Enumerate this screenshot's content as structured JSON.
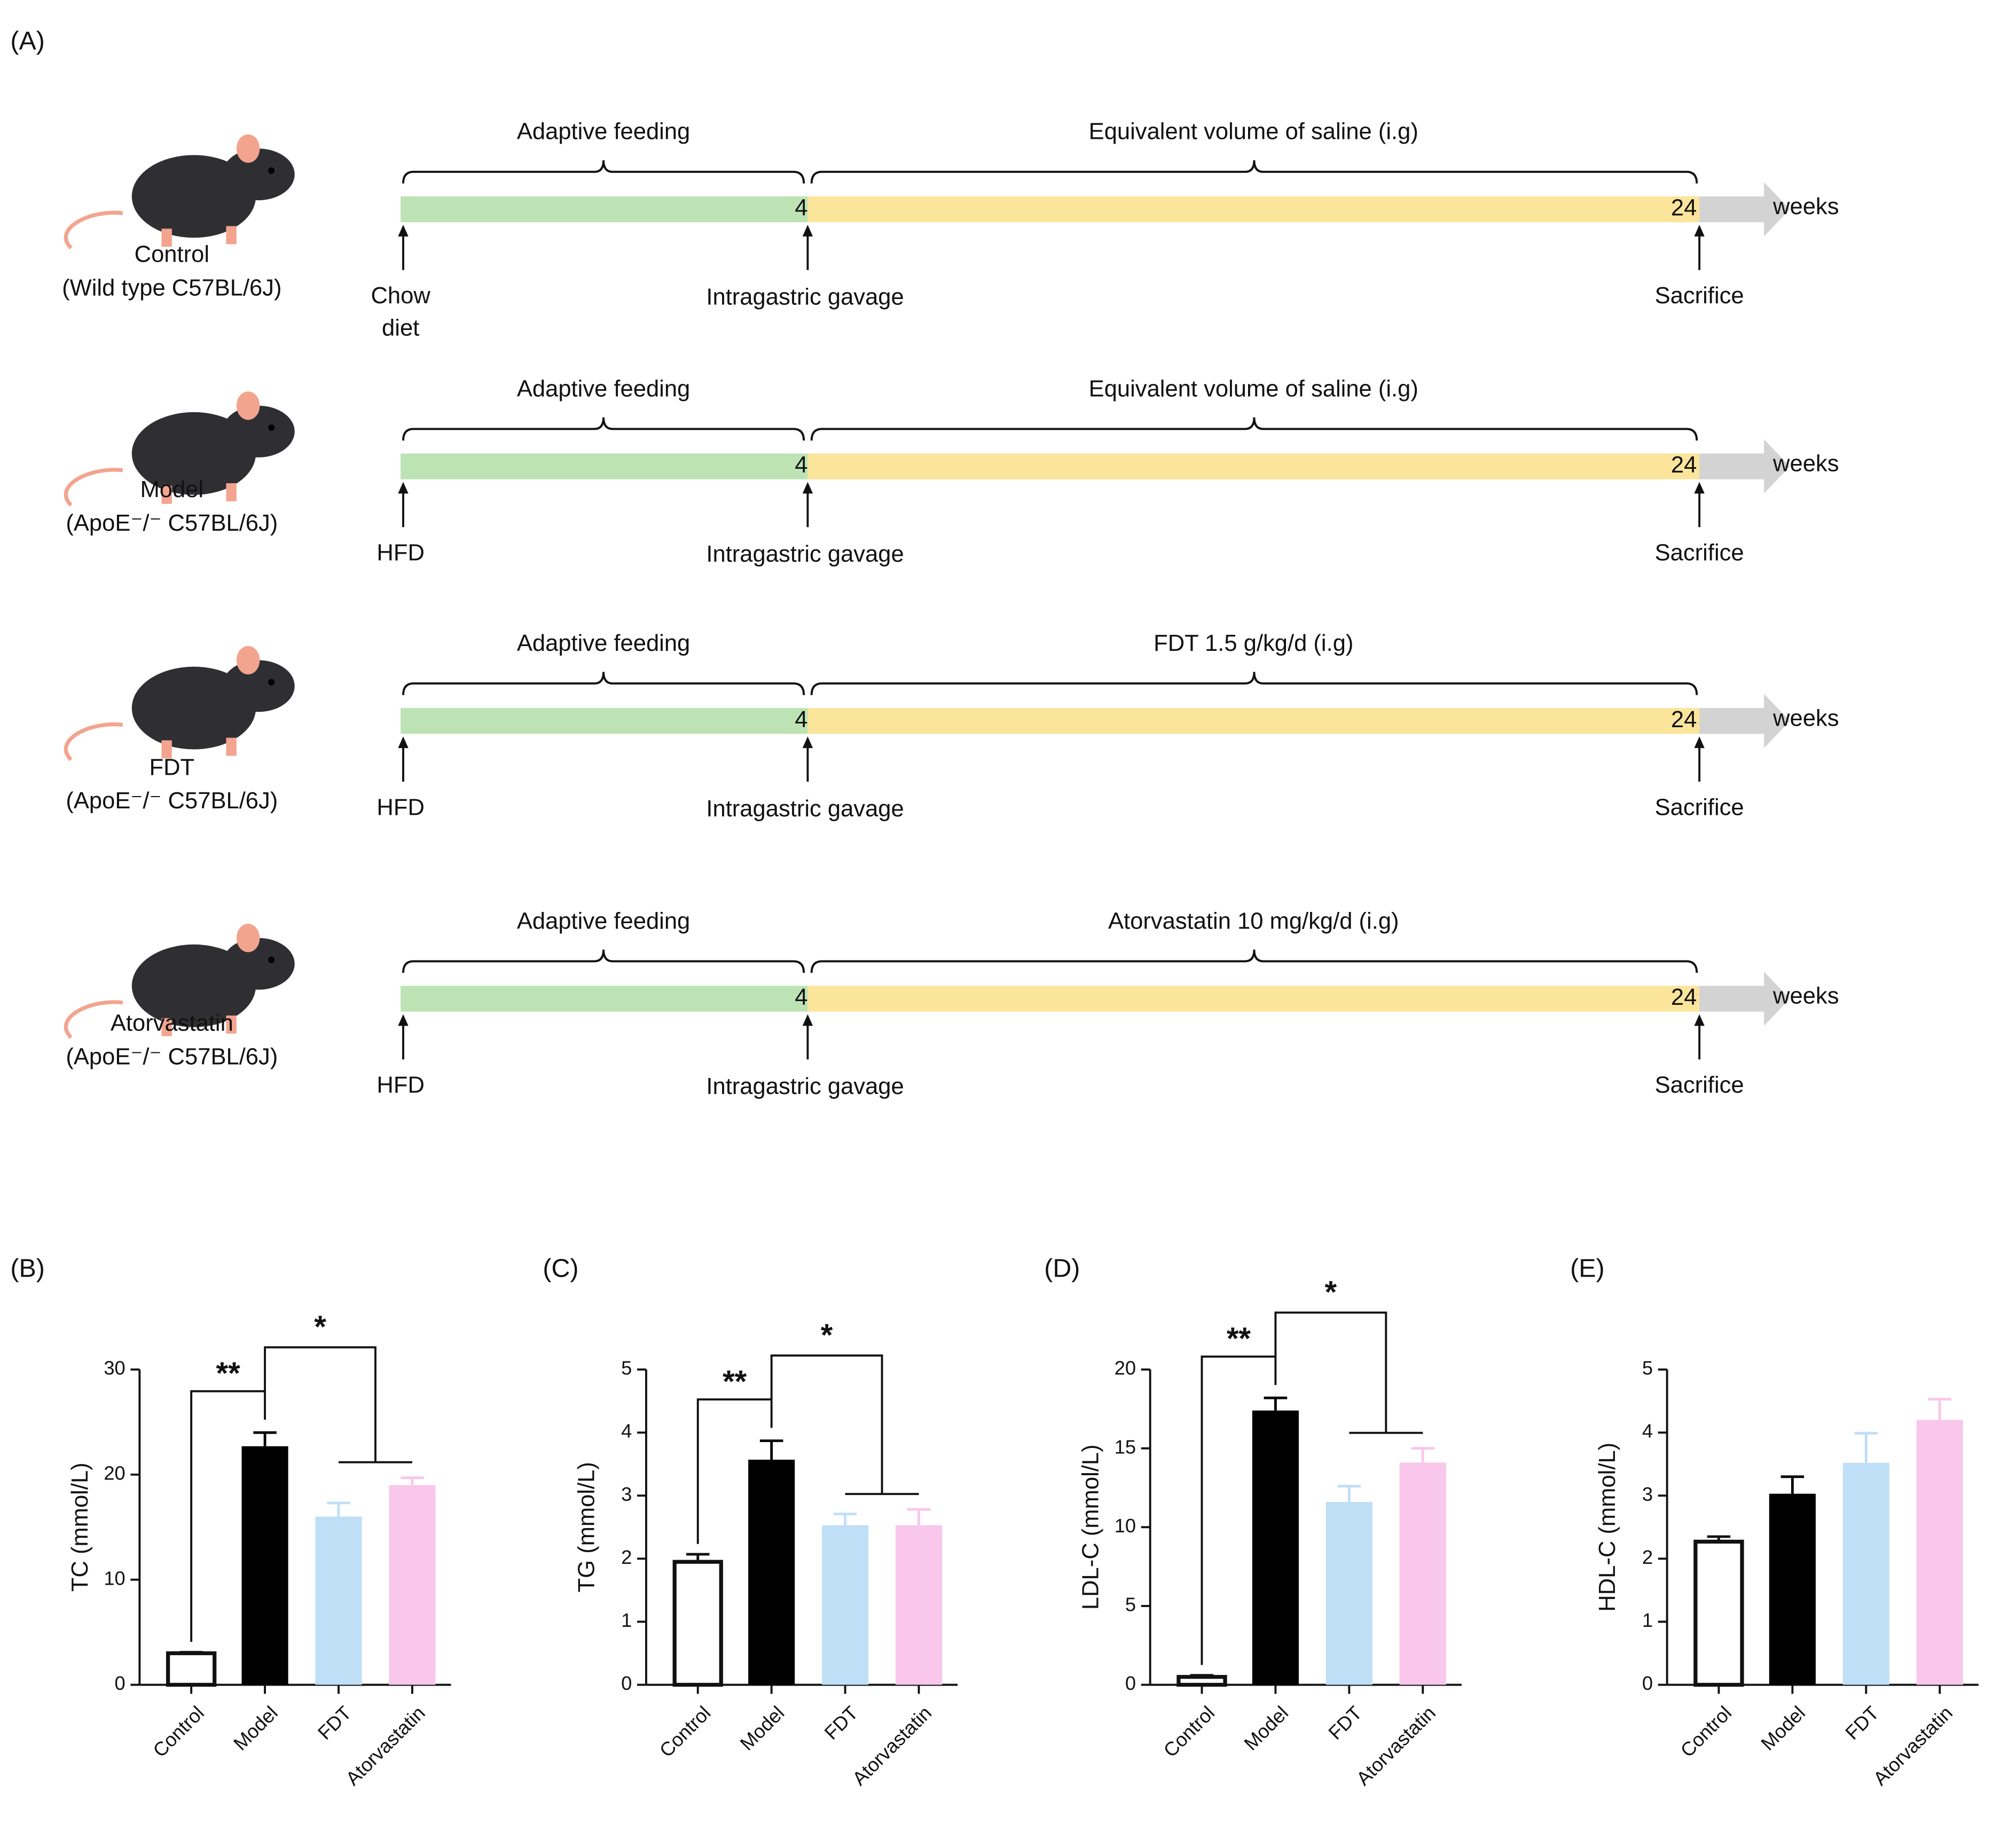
{
  "panel_a": {
    "label": "(A)",
    "unit": "weeks",
    "groups": [
      {
        "name": "Control",
        "strain": "(Wild type C57BL/6J)",
        "start_label": [
          "Chow",
          "diet"
        ],
        "phase1": "Adaptive feeding",
        "phase2": "Equivalent volume of saline (i.g)",
        "weeks": [
          4,
          24
        ],
        "mid_event": "Intragastric gavage",
        "end_event": "Sacrifice"
      },
      {
        "name": "Model",
        "strain": "(ApoE⁻/⁻ C57BL/6J)",
        "start_label": [
          "HFD"
        ],
        "phase1": "Adaptive feeding",
        "phase2": "Equivalent volume of saline (i.g)",
        "weeks": [
          4,
          24
        ],
        "mid_event": "Intragastric gavage",
        "end_event": "Sacrifice"
      },
      {
        "name": "FDT",
        "strain": "(ApoE⁻/⁻ C57BL/6J)",
        "start_label": [
          "HFD"
        ],
        "phase1": "Adaptive feeding",
        "phase2": "FDT 1.5 g/kg/d (i.g)",
        "weeks": [
          4,
          24
        ],
        "mid_event": "Intragastric gavage",
        "end_event": "Sacrifice"
      },
      {
        "name": "Atorvastatin",
        "strain": "(ApoE⁻/⁻ C57BL/6J)",
        "start_label": [
          "HFD"
        ],
        "phase1": "Adaptive feeding",
        "phase2": "Atorvastatin 10 mg/kg/d (i.g)",
        "weeks": [
          4,
          24
        ],
        "mid_event": "Intragastric gavage",
        "end_event": "Sacrifice"
      }
    ]
  },
  "chart_data": [
    {
      "type": "bar",
      "label": "(B)",
      "ylabel": "TC (mmol/L)",
      "categories": [
        "Control",
        "Model",
        "FDT",
        "Atorvastatin"
      ],
      "values": [
        3.0,
        22.7,
        16.0,
        19.0
      ],
      "errors": [
        0.1,
        1.3,
        1.3,
        0.7
      ],
      "colors": [
        "#ffffff",
        "#000000",
        "#bfdff7",
        "#f9c6ec"
      ],
      "ylim": [
        0,
        30
      ],
      "yticks": [
        0,
        10,
        20,
        30
      ],
      "annotations": [
        "**",
        "*"
      ]
    },
    {
      "type": "bar",
      "label": "(C)",
      "ylabel": "TG (mmol/L)",
      "categories": [
        "Control",
        "Model",
        "FDT",
        "Atorvastatin"
      ],
      "values": [
        1.95,
        3.57,
        2.53,
        2.53
      ],
      "errors": [
        0.12,
        0.3,
        0.18,
        0.25
      ],
      "colors": [
        "#ffffff",
        "#000000",
        "#bfdff7",
        "#f9c6ec"
      ],
      "ylim": [
        0,
        5
      ],
      "yticks": [
        0,
        1,
        2,
        3,
        4,
        5
      ],
      "annotations": [
        "**",
        "*"
      ]
    },
    {
      "type": "bar",
      "label": "(D)",
      "ylabel": "LDL-C (mmol/L)",
      "categories": [
        "Control",
        "Model",
        "FDT",
        "Atorvastatin"
      ],
      "values": [
        0.5,
        17.4,
        11.6,
        14.1
      ],
      "errors": [
        0.1,
        0.8,
        1.0,
        0.9
      ],
      "colors": [
        "#ffffff",
        "#000000",
        "#bfdff7",
        "#f9c6ec"
      ],
      "ylim": [
        0,
        20
      ],
      "yticks": [
        0,
        5,
        10,
        15,
        20
      ],
      "annotations": [
        "**",
        "*"
      ]
    },
    {
      "type": "bar",
      "label": "(E)",
      "ylabel": "HDL-C (mmol/L)",
      "categories": [
        "Control",
        "Model",
        "FDT",
        "Atorvastatin"
      ],
      "values": [
        2.27,
        3.03,
        3.52,
        4.2
      ],
      "errors": [
        0.08,
        0.27,
        0.47,
        0.33
      ],
      "colors": [
        "#ffffff",
        "#000000",
        "#bfdff7",
        "#f9c6ec"
      ],
      "ylim": [
        0,
        5
      ],
      "yticks": [
        0,
        1,
        2,
        3,
        4,
        5
      ]
    }
  ]
}
